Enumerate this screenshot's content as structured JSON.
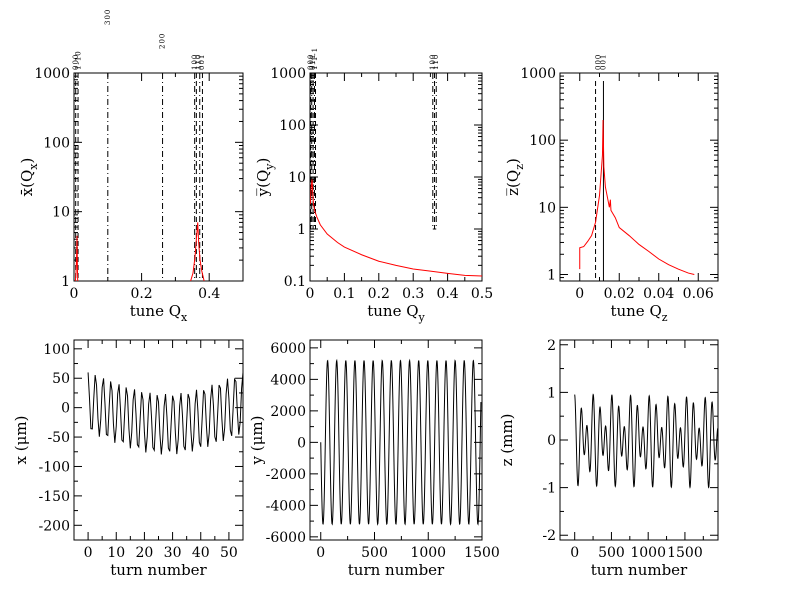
{
  "chart_data": [
    {
      "type": "line",
      "panel": "top-left",
      "xlabel": "tune Q",
      "xlabel_sub": "x",
      "ylabel": "x̄(Q",
      "ylabel_sub": "x",
      "ylabel_close": ")",
      "xlim": [
        0,
        0.5
      ],
      "ylim": [
        1,
        1000
      ],
      "yscale": "log",
      "xticks": [
        0,
        0.2,
        0.4
      ],
      "xtick_labels": [
        "0",
        "0.2",
        "0.4"
      ],
      "yticks": [
        1,
        10,
        100,
        1000
      ],
      "ytick_labels": [
        "1",
        "10",
        "100",
        "1000"
      ],
      "resonance_lines": [
        {
          "x": 0.005,
          "style": "dashed"
        },
        {
          "x": 0.012,
          "style": "dashed"
        },
        {
          "x": 0.1,
          "style": "dashdot"
        },
        {
          "x": 0.262,
          "style": "dashdot"
        },
        {
          "x": 0.357,
          "style": "dashdot"
        },
        {
          "x": 0.362,
          "style": "dashed"
        },
        {
          "x": 0.372,
          "style": "dashdot"
        },
        {
          "x": 0.38,
          "style": "dashed"
        }
      ],
      "resonance_labels": [
        {
          "x": 0.006,
          "text": "000"
        },
        {
          "x": 0.014,
          "text": "1-10"
        },
        {
          "x": 0.1,
          "text": "300"
        },
        {
          "x": 0.262,
          "text": "200"
        },
        {
          "x": 0.358,
          "text": "100"
        },
        {
          "x": 0.368,
          "text": "110"
        },
        {
          "x": 0.378,
          "text": "001"
        }
      ],
      "series": [
        {
          "color": "#ff0000",
          "segments": [
            [
              [
                0.004,
                1
              ],
              [
                0.006,
                1.3
              ],
              [
                0.008,
                2.5
              ],
              [
                0.009,
                4.5
              ],
              [
                0.01,
                1.6
              ],
              [
                0.011,
                1
              ]
            ],
            [
              [
                0.345,
                1
              ],
              [
                0.352,
                1.3
              ],
              [
                0.358,
                2.2
              ],
              [
                0.362,
                4
              ],
              [
                0.366,
                7
              ],
              [
                0.369,
                3.5
              ],
              [
                0.373,
                2
              ],
              [
                0.378,
                1.4
              ],
              [
                0.385,
                1
              ]
            ]
          ]
        }
      ]
    },
    {
      "type": "line",
      "panel": "top-middle",
      "xlabel": "tune Q",
      "xlabel_sub": "y",
      "ylabel": "y̅(Q",
      "ylabel_sub": "y",
      "ylabel_close": ")",
      "xlim": [
        0,
        0.5
      ],
      "ylim": [
        0.1,
        1000
      ],
      "yscale": "log",
      "xticks": [
        0,
        0.1,
        0.2,
        0.3,
        0.4,
        0.5
      ],
      "xtick_labels": [
        "0",
        "0.1",
        "0.2",
        "0.3",
        "0.4",
        "0.5"
      ],
      "yticks": [
        0.1,
        1,
        10,
        100,
        1000
      ],
      "ytick_labels": [
        "0.1",
        "1",
        "10",
        "100",
        "1000"
      ],
      "resonance_lines": [
        {
          "x": 0.002,
          "style": "dashed"
        },
        {
          "x": 0.005,
          "style": "dashdot"
        },
        {
          "x": 0.009,
          "style": "dashed"
        },
        {
          "x": 0.013,
          "style": "dashdot"
        },
        {
          "x": 0.016,
          "style": "dashed"
        },
        {
          "x": 0.357,
          "style": "dashdot"
        },
        {
          "x": 0.362,
          "style": "dashed"
        },
        {
          "x": 0.367,
          "style": "dashdot"
        }
      ],
      "resonance_labels": [
        {
          "x": 0.003,
          "text": "000"
        },
        {
          "x": 0.009,
          "text": "011"
        },
        {
          "x": 0.015,
          "text": "1-1-1"
        },
        {
          "x": 0.358,
          "text": "100"
        },
        {
          "x": 0.366,
          "text": "110"
        }
      ],
      "series": [
        {
          "color": "#ff0000",
          "segments": [
            [
              [
                0.001,
                3
              ],
              [
                0.003,
                6
              ],
              [
                0.006,
                9
              ],
              [
                0.008,
                5
              ],
              [
                0.01,
                3
              ],
              [
                0.014,
                2.2
              ],
              [
                0.02,
                1.7
              ],
              [
                0.03,
                1.2
              ],
              [
                0.05,
                0.8
              ],
              [
                0.08,
                0.55
              ],
              [
                0.1,
                0.45
              ],
              [
                0.15,
                0.32
              ],
              [
                0.2,
                0.24
              ],
              [
                0.25,
                0.2
              ],
              [
                0.3,
                0.17
              ],
              [
                0.35,
                0.155
              ],
              [
                0.4,
                0.14
              ],
              [
                0.45,
                0.128
              ],
              [
                0.5,
                0.125
              ]
            ]
          ]
        }
      ]
    },
    {
      "type": "line",
      "panel": "top-right",
      "xlabel": "tune Q",
      "xlabel_sub": "z",
      "ylabel": "z̅(Q",
      "ylabel_sub": "z",
      "ylabel_close": ")",
      "xlim": [
        -0.01,
        0.07
      ],
      "ylim": [
        0.8,
        1000
      ],
      "yscale": "log",
      "xticks": [
        0,
        0.02,
        0.04,
        0.06
      ],
      "xtick_labels": [
        "0",
        "0.02",
        "0.04",
        "0.06"
      ],
      "yticks": [
        1,
        10,
        100,
        1000
      ],
      "ytick_labels": [
        "1",
        "10",
        "100",
        "1000"
      ],
      "resonance_lines": [
        {
          "x": 0.008,
          "style": "dashed"
        },
        {
          "x": 0.012,
          "style": "solid"
        }
      ],
      "resonance_labels": [
        {
          "x": 0.0095,
          "text": "000"
        },
        {
          "x": 0.012,
          "text": "001"
        }
      ],
      "series": [
        {
          "color": "#ff0000",
          "segments": [
            [
              [
                0.0,
                1.2
              ],
              [
                0.0,
                2.5
              ],
              [
                0.002,
                2.6
              ],
              [
                0.004,
                3.1
              ],
              [
                0.006,
                3.8
              ],
              [
                0.008,
                6
              ],
              [
                0.01,
                15
              ],
              [
                0.0115,
                60
              ],
              [
                0.0118,
                200
              ],
              [
                0.0122,
                40
              ],
              [
                0.013,
                20
              ],
              [
                0.015,
                10
              ],
              [
                0.0155,
                13
              ],
              [
                0.0158,
                9
              ],
              [
                0.018,
                7
              ],
              [
                0.02,
                5
              ],
              [
                0.025,
                3.8
              ],
              [
                0.03,
                2.8
              ],
              [
                0.035,
                2.2
              ],
              [
                0.04,
                1.7
              ],
              [
                0.045,
                1.4
              ],
              [
                0.05,
                1.2
              ],
              [
                0.055,
                1.05
              ],
              [
                0.058,
                1.0
              ]
            ]
          ]
        }
      ]
    },
    {
      "type": "line",
      "panel": "bottom-left",
      "xlabel": "turn number",
      "ylabel": "x (μm)",
      "xlim": [
        -5,
        55
      ],
      "ylim": [
        -225,
        115
      ],
      "xticks": [
        0,
        10,
        20,
        30,
        40,
        50
      ],
      "xtick_labels": [
        "0",
        "10",
        "20",
        "30",
        "40",
        "50"
      ],
      "yticks": [
        -200,
        -150,
        -100,
        -50,
        0,
        50,
        100
      ],
      "ytick_labels": [
        "-200",
        "-150",
        "-100",
        "-50",
        "0",
        "50",
        "100"
      ],
      "series": [
        {
          "color": "#000000",
          "samples": 110,
          "x0": 0,
          "x1": 55,
          "components": [
            {
              "amp": 52,
              "freq": 0.363,
              "phase": 0.3
            },
            {
              "amp": 28,
              "freq": 0.011,
              "phase": 1.2
            }
          ]
        }
      ]
    },
    {
      "type": "line",
      "panel": "bottom-middle",
      "xlabel": "turn number",
      "ylabel": "y (μm)",
      "xlim": [
        -100,
        1500
      ],
      "ylim": [
        -6200,
        6500
      ],
      "xticks": [
        0,
        500,
        1000,
        1500
      ],
      "xtick_labels": [
        "0",
        "500",
        "1000",
        "1500"
      ],
      "yticks": [
        -6000,
        -4000,
        -2000,
        0,
        2000,
        4000,
        6000
      ],
      "ytick_labels": [
        "-6000",
        "-4000",
        "-2000",
        "0",
        "2000",
        "4000",
        "6000"
      ],
      "series": [
        {
          "color": "#000000",
          "samples": 600,
          "x0": 0,
          "x1": 1490,
          "components": [
            {
              "amp": 5200,
              "freq": 0.0118,
              "phase": 1.57
            }
          ]
        }
      ]
    },
    {
      "type": "line",
      "panel": "bottom-right",
      "xlabel": "turn number",
      "ylabel": "z (mm)",
      "xlim": [
        -200,
        1950
      ],
      "ylim": [
        -2.1,
        2.1
      ],
      "xticks": [
        0,
        500,
        1000,
        1500
      ],
      "xtick_labels": [
        "0",
        "500",
        "1000",
        "1500"
      ],
      "yticks": [
        -2,
        -1,
        0,
        1,
        2
      ],
      "ytick_labels": [
        "-2",
        "-1",
        "0",
        "1",
        "2"
      ],
      "series": [
        {
          "color": "#000000",
          "samples": 900,
          "x0": 0,
          "x1": 1950,
          "components": [
            {
              "amp": 0.62,
              "freq": 0.0118,
              "phase": 0.0
            },
            {
              "amp": 0.38,
              "freq": 0.0079,
              "phase": 0.5
            }
          ]
        }
      ]
    }
  ]
}
